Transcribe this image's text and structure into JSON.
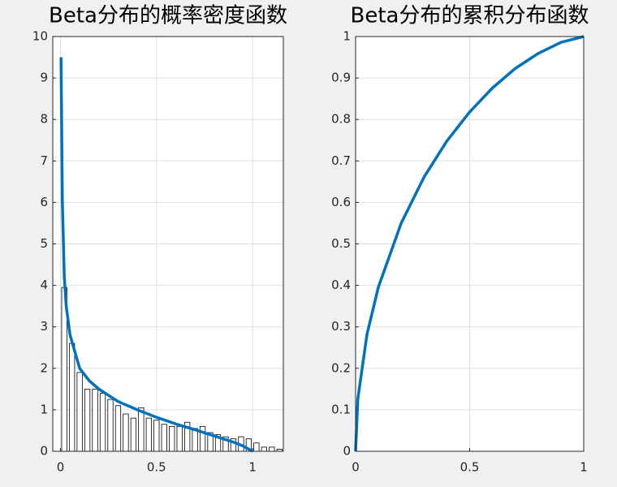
{
  "chart_data": [
    {
      "type": "histogram",
      "title": "Beta分布的概率密度函数",
      "bins": [
        0,
        0.04,
        0.08,
        0.12,
        0.16,
        0.2,
        0.24,
        0.28,
        0.32,
        0.36,
        0.4,
        0.44,
        0.48,
        0.52,
        0.56,
        0.6,
        0.64,
        0.68,
        0.72,
        0.76,
        0.8,
        0.84,
        0.88,
        0.92,
        0.96,
        1,
        1.04,
        1.08,
        1.12,
        1.16
      ],
      "counts": [
        3.95,
        2.6,
        1.9,
        1.5,
        1.5,
        1.4,
        1.25,
        1.1,
        0.9,
        0.8,
        1.05,
        0.8,
        0.75,
        0.65,
        0.6,
        0.6,
        0.7,
        0.55,
        0.6,
        0.45,
        0.4,
        0.35,
        0.3,
        0.35,
        0.3,
        0.2,
        0.1,
        0.1,
        0.05
      ],
      "bar_color": "#ffffff",
      "edge_color": "#000000",
      "line": {
        "x": [
          0.003,
          0.01,
          0.02,
          0.03,
          0.05,
          0.1,
          0.15,
          0.2,
          0.3,
          0.4,
          0.5,
          0.6,
          0.7,
          0.8,
          0.9,
          0.95,
          1
        ],
        "values": [
          9.5,
          6,
          4.2,
          3.5,
          2.8,
          2,
          1.7,
          1.5,
          1.2,
          1,
          0.82,
          0.66,
          0.52,
          0.37,
          0.22,
          0.13,
          0
        ],
        "color": "#0072bd"
      },
      "xlim": [
        -0.04,
        1.16
      ],
      "ylim": [
        0,
        10
      ],
      "xticks": [
        0,
        0.5,
        1
      ],
      "yticks": [
        0,
        1,
        2,
        3,
        4,
        5,
        6,
        7,
        8,
        9,
        10
      ],
      "grid": true
    },
    {
      "type": "line",
      "title": "Beta分布的累积分布函数",
      "x": [
        0,
        0.01,
        0.05,
        0.1,
        0.2,
        0.3,
        0.4,
        0.5,
        0.6,
        0.7,
        0.8,
        0.9,
        1
      ],
      "values": [
        0,
        0.127,
        0.282,
        0.396,
        0.55,
        0.661,
        0.748,
        0.818,
        0.876,
        0.923,
        0.959,
        0.986,
        1
      ],
      "color": "#0072bd",
      "xlim": [
        0,
        1
      ],
      "ylim": [
        0,
        1
      ],
      "xticks": [
        0,
        0.5,
        1
      ],
      "yticks": [
        0,
        0.1,
        0.2,
        0.3,
        0.4,
        0.5,
        0.6,
        0.7,
        0.8,
        0.9,
        1
      ],
      "grid": true
    }
  ]
}
